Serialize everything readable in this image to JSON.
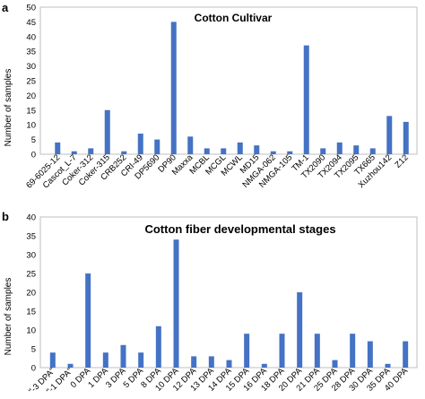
{
  "chart_data": [
    {
      "panel": "a",
      "type": "bar",
      "title": "Cotton Cultivar",
      "xlabel": "",
      "ylabel": "Number of samples",
      "ylim": [
        0,
        50
      ],
      "yticks": [
        0,
        5,
        10,
        15,
        20,
        25,
        30,
        35,
        40,
        45,
        50
      ],
      "grid": false,
      "color": "#4472C4",
      "categories": [
        "69-6025-12",
        "Cascot_L-7",
        "Coker-312",
        "Coker-315",
        "CRB252",
        "CRI-49",
        "DP5690",
        "DP90",
        "Maxxa",
        "MCBL",
        "MCGL",
        "MCWL",
        "MD15",
        "NMGA-062",
        "NMGA-105",
        "TM-1",
        "TX2090",
        "TX2094",
        "TX2095",
        "TX665",
        "Xuzhou142",
        "Z12"
      ],
      "values": [
        4,
        1,
        2,
        15,
        1,
        7,
        5,
        45,
        6,
        2,
        2,
        4,
        3,
        1,
        1,
        37,
        2,
        4,
        3,
        2,
        13,
        11
      ]
    },
    {
      "panel": "b",
      "type": "bar",
      "title": "Cotton fiber developmental stages",
      "xlabel": "",
      "ylabel": "Number of samples",
      "ylim": [
        0,
        40
      ],
      "yticks": [
        0,
        5,
        10,
        15,
        20,
        25,
        30,
        35,
        40
      ],
      "grid": false,
      "color": "#4472C4",
      "categories": [
        "\"-3 DPA\"",
        "\"-1 DPA\"",
        "0 DPA",
        "1 DPA",
        "3 DPA",
        "5 DPA",
        "8 DPA",
        "10 DPA",
        "12 DPA",
        "13 DPA",
        "14 DPA",
        "15 DPA",
        "16 DPA",
        "18 DPA",
        "20 DPA",
        "21 DPA",
        "25 DPA",
        "28 DPA",
        "30 DPA",
        "35 DPA",
        "40 DPA"
      ],
      "values": [
        4,
        1,
        25,
        4,
        6,
        4,
        11,
        34,
        3,
        3,
        2,
        9,
        1,
        9,
        20,
        9,
        2,
        9,
        7,
        1,
        7
      ]
    }
  ]
}
